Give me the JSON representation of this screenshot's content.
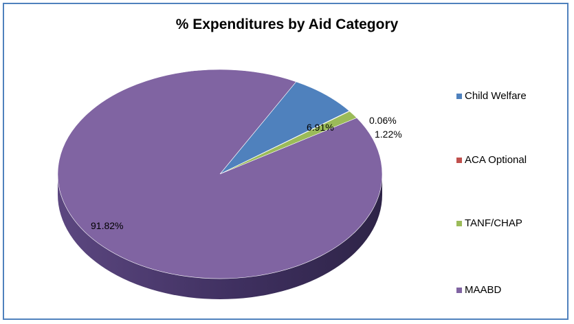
{
  "chart_data": {
    "type": "pie",
    "title": "% Expenditures by Aid Category",
    "categories": [
      "Child Welfare",
      "ACA Optional",
      "TANF/CHAP",
      "MAABD"
    ],
    "values": [
      6.91,
      0.06,
      1.22,
      91.82
    ],
    "data_labels": [
      "6.91%",
      "0.06%",
      "1.22%",
      "91.82%"
    ],
    "colors": [
      "#4f81bd",
      "#c0504d",
      "#9bbb59",
      "#8064a2"
    ],
    "legend_position": "right",
    "style": "3d"
  }
}
